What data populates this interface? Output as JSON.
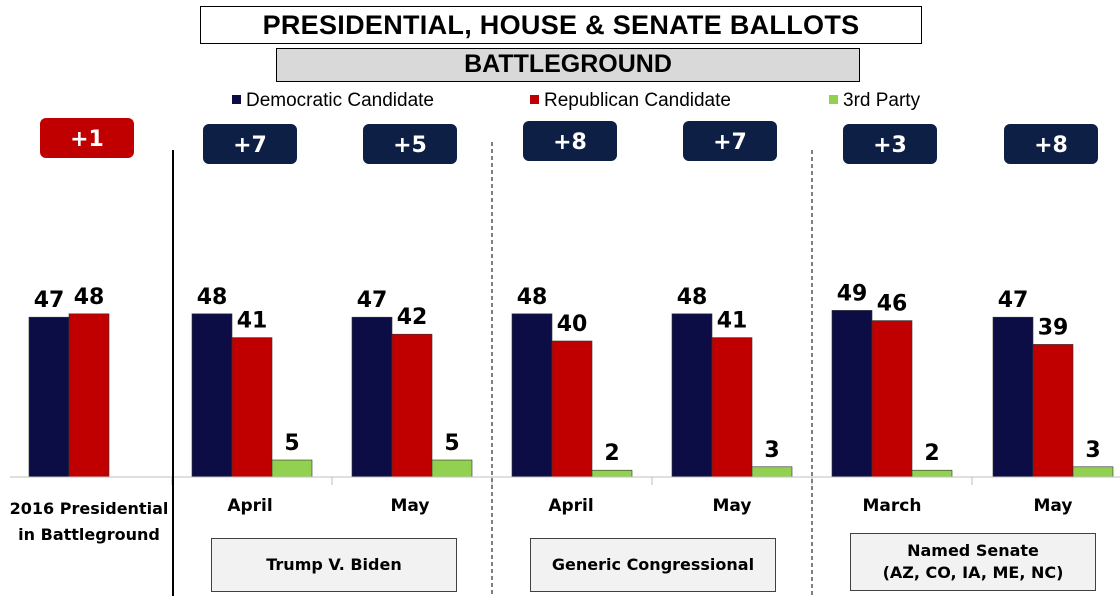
{
  "title": "PRESIDENTIAL, HOUSE & SENATE BALLOTS",
  "subtitle": "BATTLEGROUND",
  "colors": {
    "democratic": "#0d0d45",
    "republican": "#c00000",
    "third": "#92d050",
    "margin_dem": "#0d1f45",
    "margin_rep": "#c00000"
  },
  "legend": [
    {
      "label": "Democratic Candidate",
      "color": "#0d0d45"
    },
    {
      "label": "Republican Candidate",
      "color": "#c00000"
    },
    {
      "label": "3rd Party",
      "color": "#92d050"
    }
  ],
  "first_category": {
    "line1": "2016 Presidential",
    "line2": "in Battleground"
  },
  "groups": [
    {
      "label": "Trump V. Biden"
    },
    {
      "label": "Generic Congressional"
    },
    {
      "label_line1": "Named Senate",
      "label_line2": "(AZ, CO, IA, ME, NC)"
    }
  ],
  "chart_data": {
    "type": "bar",
    "categories": [
      "2016 Presidential in Battleground",
      "April",
      "May",
      "April",
      "May",
      "March",
      "May"
    ],
    "series": [
      {
        "name": "Democratic Candidate",
        "values": [
          47,
          48,
          47,
          48,
          48,
          49,
          47
        ]
      },
      {
        "name": "Republican Candidate",
        "values": [
          48,
          41,
          42,
          40,
          41,
          46,
          39
        ]
      },
      {
        "name": "3rd Party",
        "values": [
          null,
          5,
          5,
          2,
          3,
          2,
          3
        ]
      }
    ],
    "margins": [
      {
        "label": "+1",
        "party": "rep"
      },
      {
        "label": "+7",
        "party": "dem"
      },
      {
        "label": "+5",
        "party": "dem"
      },
      {
        "label": "+8",
        "party": "dem"
      },
      {
        "label": "+7",
        "party": "dem"
      },
      {
        "label": "+3",
        "party": "dem"
      },
      {
        "label": "+8",
        "party": "dem"
      }
    ],
    "ylim": [
      0,
      55
    ],
    "grid": false,
    "legend_position": "top"
  }
}
